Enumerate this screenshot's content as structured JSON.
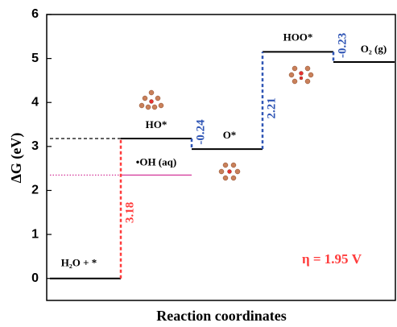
{
  "chart_data": {
    "type": "energy-profile",
    "ylabel": "ΔG (eV)",
    "xlabel": "Reaction coordinates",
    "ylim": [
      -0.5,
      6
    ],
    "yticks": [
      0,
      1,
      2,
      3,
      4,
      5,
      6
    ],
    "categories": [
      "H₂O + *",
      "HO*",
      "O*",
      "HOO*",
      "O₂ (g)"
    ],
    "values": [
      0,
      3.18,
      2.94,
      5.15,
      4.92
    ],
    "color": "#000000",
    "steps": [
      3.18,
      -0.24,
      2.21,
      -0.23
    ],
    "step_colors": [
      "#ff3b3b",
      "#2f55b5",
      "#2f55b5",
      "#2f55b5"
    ],
    "side_level": {
      "label": "•OH (aq)",
      "value": 2.35,
      "color": "#d4379a"
    },
    "annotation": "η = 1.95 V",
    "annotation_color": "#ff3b3b"
  }
}
